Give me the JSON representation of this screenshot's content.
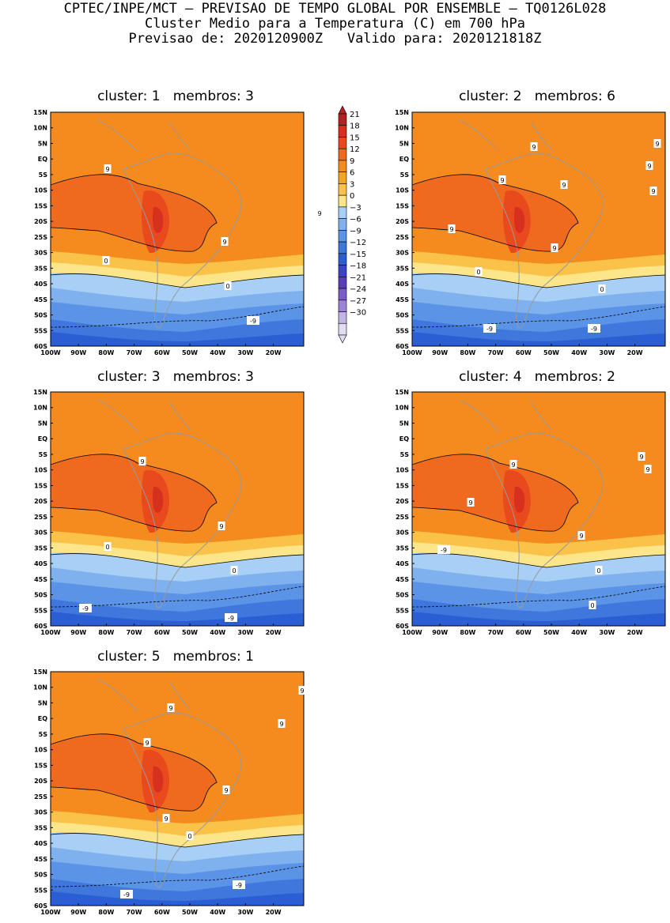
{
  "header": {
    "line1": "CPTEC/INPE/MCT — PREVISAO DE TEMPO GLOBAL POR ENSEMBLE — TQ0126L028",
    "line2": "Cluster Medio para a Temperatura (C) em 700 hPa",
    "line3": "Previsao de: 2020120900Z   Valido para: 2020121818Z"
  },
  "axes": {
    "lat_labels": [
      "15N",
      "10N",
      "5N",
      "EQ",
      "5S",
      "10S",
      "15S",
      "20S",
      "25S",
      "30S",
      "35S",
      "40S",
      "45S",
      "50S",
      "55S",
      "60S"
    ],
    "lon_labels": [
      "100W",
      "90W",
      "80W",
      "70W",
      "60W",
      "50W",
      "40W",
      "30W",
      "20W"
    ]
  },
  "colorbar": {
    "labels": [
      "21",
      "18",
      "15",
      "12",
      "9",
      "6",
      "3",
      "0",
      "-3",
      "-6",
      "-9",
      "-12",
      "-15",
      "-18",
      "-21",
      "-24",
      "-27",
      "-30"
    ],
    "colors": [
      "#b22222",
      "#d7301f",
      "#e8491d",
      "#ef6a1e",
      "#f58b1f",
      "#f7a325",
      "#fbc24a",
      "#fde68a",
      "#a8cff5",
      "#7eb1ee",
      "#5b94e6",
      "#3f77dd",
      "#2c5ed3",
      "#3b44c4",
      "#5a3db8",
      "#7a5cc9",
      "#9b84d8",
      "#c2b4e6",
      "#e2dcf2"
    ]
  },
  "clusters": [
    {
      "title": "cluster: 1   membros: 3",
      "contour_labels": [
        "9",
        "9",
        "9",
        "0",
        "0",
        "-9"
      ]
    },
    {
      "title": "cluster: 2   membros: 6",
      "contour_labels": [
        "9",
        "9",
        "9",
        "9",
        "9",
        "9",
        "9",
        "9",
        "0",
        "0",
        "-9",
        "-9"
      ]
    },
    {
      "title": "cluster: 3   membros: 3",
      "contour_labels": [
        "9",
        "9",
        "0",
        "0",
        "-9",
        "-9"
      ]
    },
    {
      "title": "cluster: 4   membros: 2",
      "contour_labels": [
        "9",
        "9",
        "9",
        "9",
        "9",
        "0",
        "0",
        "-9"
      ]
    },
    {
      "title": "cluster: 5   membros: 1",
      "contour_labels": [
        "9",
        "9",
        "9",
        "9",
        "9",
        "9",
        "0",
        "-9",
        "-9"
      ]
    }
  ]
}
